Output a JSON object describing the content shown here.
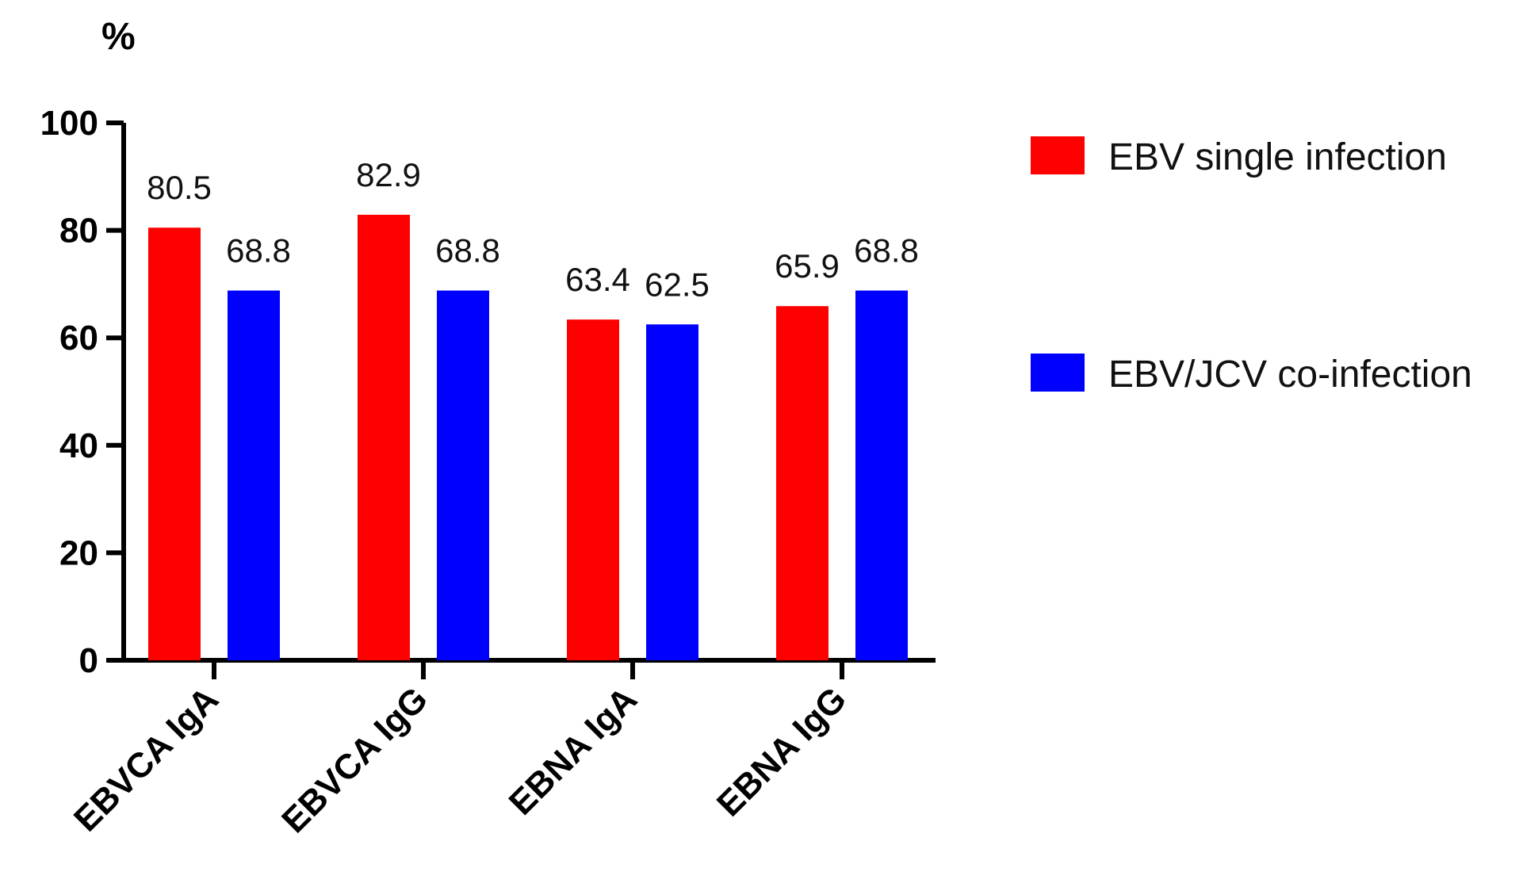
{
  "chart_data": {
    "type": "bar",
    "ylabel": "%",
    "ylim": [
      0,
      100
    ],
    "yticks": [
      0,
      20,
      40,
      60,
      80,
      100
    ],
    "categories": [
      "EBVCA IgA",
      "EBVCA IgG",
      "EBNA IgA",
      "EBNA IgG"
    ],
    "series": [
      {
        "name": "EBV single infection",
        "color": "#ff0000",
        "values": [
          80.5,
          82.9,
          63.4,
          65.9
        ]
      },
      {
        "name": "EBV/JCV co-infection",
        "color": "#0000ff",
        "values": [
          68.8,
          68.8,
          62.5,
          68.8
        ]
      }
    ],
    "grid": false,
    "legend_position": "top-right"
  }
}
